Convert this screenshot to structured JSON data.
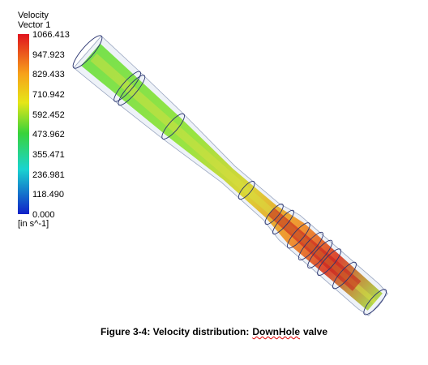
{
  "legend": {
    "title": "Velocity",
    "subtitle": "Vector 1",
    "labels": [
      "1066.413",
      "947.923",
      "829.433",
      "710.942",
      "592.452",
      "473.962",
      "355.471",
      "236.981",
      "118.490",
      "0.000"
    ],
    "unit": "[in s^-1]"
  },
  "caption": {
    "parts": [
      "Figure 3-4: Velocity distribution:",
      "DownHole",
      "valve"
    ]
  }
}
